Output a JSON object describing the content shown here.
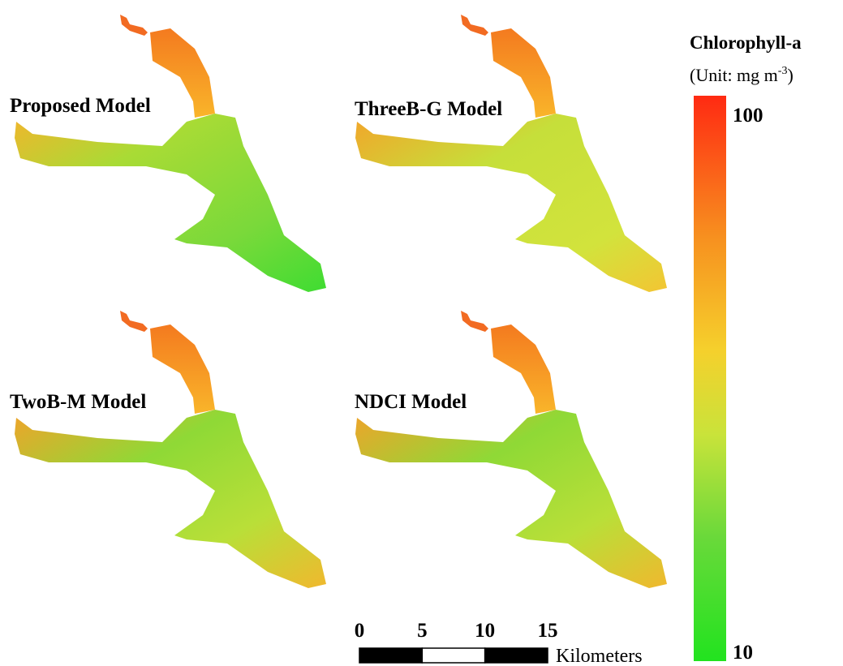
{
  "panels": [
    {
      "title": "Proposed Model"
    },
    {
      "title": "ThreeB-G Model"
    },
    {
      "title": "TwoB-M Model"
    },
    {
      "title": "NDCI Model"
    }
  ],
  "legend": {
    "title": "Chlorophyll-a",
    "unit": {
      "prefix": "(Unit: mg m",
      "superscript": "-3",
      "suffix": ")"
    },
    "max": 100,
    "min": 10
  },
  "scale_bar": {
    "ticks": [
      0,
      5,
      10,
      15
    ],
    "unit": "Kilometers"
  }
}
